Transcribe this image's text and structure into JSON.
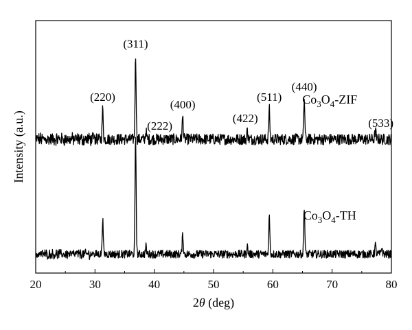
{
  "chart_data": {
    "type": "line",
    "xlabel": {
      "prefix": "2",
      "italic": "θ",
      "suffix": " (deg)"
    },
    "ylabel": "Intensity (a.u.)",
    "xlim": [
      20,
      80
    ],
    "xticks": [
      20,
      30,
      40,
      50,
      60,
      70,
      80
    ],
    "ylim": [
      0,
      1
    ],
    "grid": false,
    "series": [
      {
        "name": "Co3O4-ZIF",
        "label": {
          "base": "Co",
          "sub1": "3",
          "mid": "O",
          "sub2": "4",
          "tail": "-ZIF"
        },
        "baseline": 0.53,
        "noise": 0.022,
        "peaks": [
          {
            "x": 31.3,
            "height": 0.12
          },
          {
            "x": 36.85,
            "height": 0.33
          },
          {
            "x": 38.6,
            "height": 0.03
          },
          {
            "x": 44.8,
            "height": 0.09
          },
          {
            "x": 55.7,
            "height": 0.035
          },
          {
            "x": 59.4,
            "height": 0.12
          },
          {
            "x": 65.3,
            "height": 0.16
          },
          {
            "x": 77.3,
            "height": 0.035
          }
        ]
      },
      {
        "name": "Co3O4-TH",
        "label": {
          "base": "Co",
          "sub1": "3",
          "mid": "O",
          "sub2": "4",
          "tail": "-TH"
        },
        "baseline": 0.075,
        "noise": 0.016,
        "peaks": [
          {
            "x": 31.3,
            "height": 0.14
          },
          {
            "x": 36.85,
            "height": 0.47
          },
          {
            "x": 38.6,
            "height": 0.03
          },
          {
            "x": 44.8,
            "height": 0.08
          },
          {
            "x": 55.7,
            "height": 0.03
          },
          {
            "x": 59.4,
            "height": 0.15
          },
          {
            "x": 65.3,
            "height": 0.19
          },
          {
            "x": 77.3,
            "height": 0.035
          },
          {
            "x": 78.4,
            "height": 0.03
          }
        ]
      }
    ],
    "annotations": [
      {
        "text": "(220)",
        "x": 31.3
      },
      {
        "text": "(311)",
        "x": 36.85
      },
      {
        "text": "(222)",
        "x": 38.6
      },
      {
        "text": "(400)",
        "x": 44.8
      },
      {
        "text": "(422)",
        "x": 55.7
      },
      {
        "text": "(511)",
        "x": 59.4
      },
      {
        "text": "(440)",
        "x": 65.3
      },
      {
        "text": "(533)",
        "x": 77.3
      }
    ]
  }
}
